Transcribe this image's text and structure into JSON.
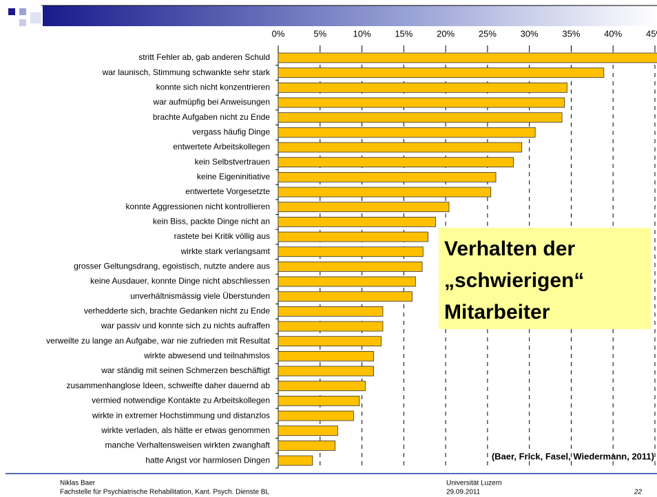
{
  "chart_data": {
    "type": "hbar",
    "title_lines": [
      "Verhalten der",
      "„schwierigen“",
      "Mitarbeiter"
    ],
    "source": "(Baer, Frick, Fasel, Wiedermann, 2011)",
    "categories": [
      "stritt Fehler ab, gab anderen Schuld",
      "war launisch, Stimmung schwankte sehr stark",
      "konnte sich nicht konzentrieren",
      "war aufmüpfig bei Anweisungen",
      "brachte Aufgaben nicht zu Ende",
      "vergass häufig Dinge",
      "entwertete Arbeitskollegen",
      "kein Selbstvertrauen",
      "keine Eigeninitiative",
      "entwertete Vorgesetzte",
      "konnte Aggressionen nicht kontrollieren",
      "kein Biss, packte Dinge nicht an",
      "rastete bei Kritik völlig aus",
      "wirkte stark verlangsamt",
      "grosser Geltungsdrang, egoistisch, nutzte andere aus",
      "keine Ausdauer, konnte Dinge nicht abschliessen",
      "unverhältnismässig viele Überstunden",
      "verhedderte sich, brachte Gedanken nicht zu Ende",
      "war passiv und konnte sich zu nichts aufraffen",
      "verweilte zu lange an Aufgabe, war nie zufrieden mit Resultat",
      "wirkte abwesend und teilnahmslos",
      "war ständig mit seinen Schmerzen beschäftigt",
      "zusammenhanglose Ideen, schweifte daher dauernd ab",
      "vermied notwendige Kontakte zu Arbeitskollegen",
      "wirkte in extremer Hochstimmung und distanzlos",
      "wirkte verladen, als hätte er etwas genommen",
      "manche Verhaltensweisen wirkten zwanghaft",
      "hatte Angst vor harmlosen Dingen"
    ],
    "values": [
      46,
      38.9,
      34.5,
      34.2,
      33.9,
      30.7,
      29.1,
      28.1,
      26.0,
      25.4,
      20.4,
      18.8,
      17.9,
      17.3,
      17.2,
      16.4,
      16.0,
      12.5,
      12.5,
      12.3,
      11.4,
      11.4,
      10.4,
      9.7,
      9.0,
      7.1,
      6.8,
      4.1
    ],
    "color": "#ffc000",
    "xlim": [
      0,
      45
    ],
    "xticks": [
      {
        "value": 0,
        "label": "0%"
      },
      {
        "value": 5,
        "label": "5%"
      },
      {
        "value": 10,
        "label": "10%"
      },
      {
        "value": 15,
        "label": "15%"
      },
      {
        "value": 20,
        "label": "20%"
      },
      {
        "value": 25,
        "label": "25%"
      },
      {
        "value": 30,
        "label": "30%"
      },
      {
        "value": 35,
        "label": "35%"
      },
      {
        "value": 40,
        "label": "40%"
      },
      {
        "value": 45,
        "label": "45%"
      }
    ],
    "grid": true
  },
  "footer": {
    "author": "Niklas Baer",
    "affiliation": "Fachstelle für Psychiatrische Rehabilitation, Kant. Psych. Dienste BL",
    "university": "Universität Luzern",
    "date": "29.09.2011",
    "page": "22"
  }
}
